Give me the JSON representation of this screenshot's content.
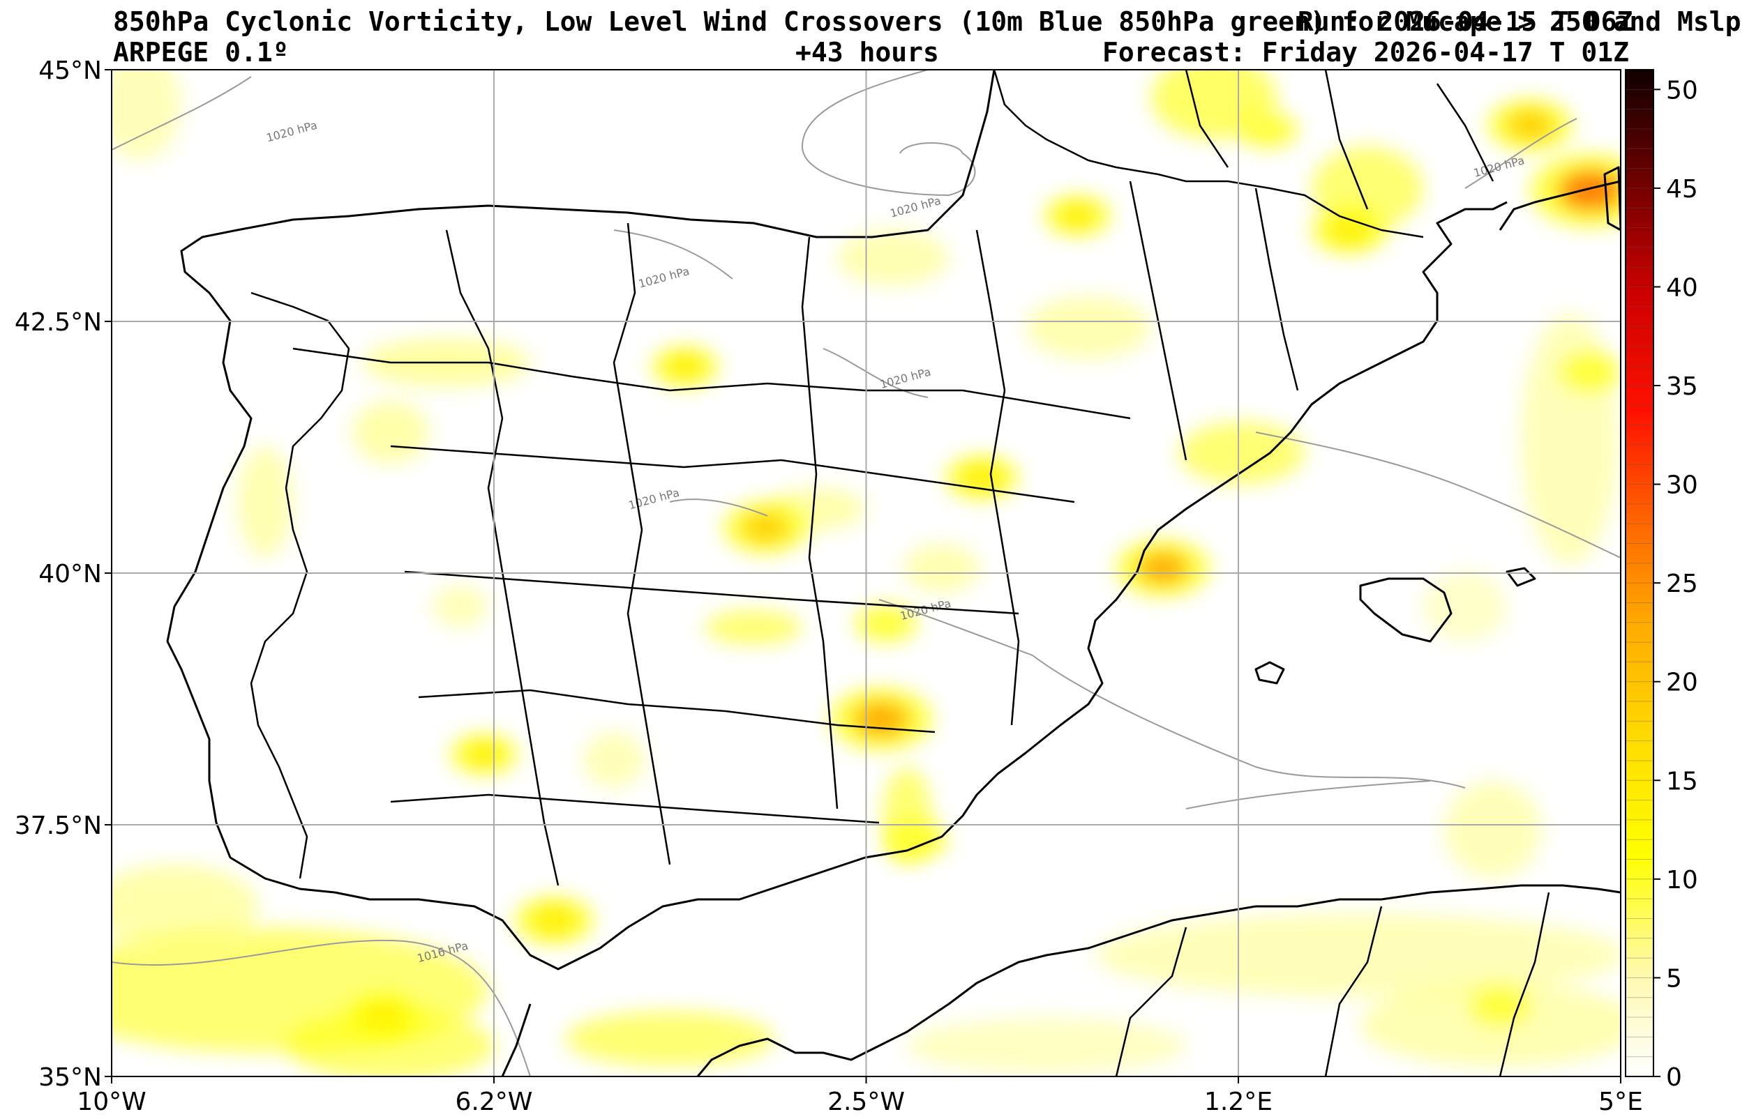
{
  "header": {
    "title": "850hPa Cyclonic Vorticity, Low Level Wind Crossovers (10m Blue 850hPa green) for Mucape > 250 and Mslp",
    "run": "Run: 2026-04-15 T 06Z",
    "model": "ARPEGE 0.1º",
    "lead": "+43 hours",
    "forecast": "Forecast: Friday 2026-04-17 T 01Z"
  },
  "map": {
    "lon_range": [
      -10,
      5
    ],
    "lat_range": [
      35,
      45
    ],
    "lon_ticks": [
      {
        "value": -10,
        "label": "10°W"
      },
      {
        "value": -6.2,
        "label": "6.2°W"
      },
      {
        "value": -2.5,
        "label": "2.5°W"
      },
      {
        "value": 1.2,
        "label": "1.2°E"
      },
      {
        "value": 5,
        "label": "5°E"
      }
    ],
    "lat_ticks": [
      {
        "value": 45,
        "label": "45°N"
      },
      {
        "value": 42.5,
        "label": "42.5°N"
      },
      {
        "value": 40,
        "label": "40°N"
      },
      {
        "value": 37.5,
        "label": "37.5°N"
      },
      {
        "value": 35,
        "label": "35°N"
      }
    ],
    "grid": true,
    "isobar_labels": [
      {
        "text": "1020 hPa",
        "lon": -8.2,
        "lat": 44.35
      },
      {
        "text": "1020 hPa",
        "lon": -2.0,
        "lat": 43.6
      },
      {
        "text": "1020 hPa",
        "lon": -4.5,
        "lat": 42.9
      },
      {
        "text": "1020 hPa",
        "lon": -2.1,
        "lat": 41.9
      },
      {
        "text": "1020 hPa",
        "lon": -4.6,
        "lat": 40.7
      },
      {
        "text": "1020 hPa",
        "lon": -1.9,
        "lat": 39.6
      },
      {
        "text": "1016 hPa",
        "lon": -6.7,
        "lat": 36.2
      },
      {
        "text": "1020 hPa",
        "lon": 3.8,
        "lat": 44.0
      }
    ]
  },
  "colorbar": {
    "min": 0,
    "max": 51,
    "ticks": [
      0,
      5,
      10,
      15,
      20,
      25,
      30,
      35,
      40,
      45,
      50
    ],
    "colors": [
      "#ffffff",
      "#fff9b0",
      "#ffff33",
      "#ffee00",
      "#ffcc00",
      "#ffaa00",
      "#ff7700",
      "#ff4400",
      "#ee0000",
      "#aa0000",
      "#550000",
      "#110000"
    ]
  },
  "chart_data": {
    "type": "heatmap",
    "title": "850hPa Cyclonic Vorticity, Low Level Wind Crossovers (10m Blue 850hPa green) for Mucape > 250 and Mslp",
    "xlabel": "",
    "ylabel": "",
    "xlim": [
      -10,
      5
    ],
    "ylim": [
      35,
      45
    ],
    "cells": [
      {
        "lon": -2.35,
        "lat": 38.55,
        "value": 24
      },
      {
        "lon": 0.45,
        "lat": 40.05,
        "value": 21
      },
      {
        "lon": -3.5,
        "lat": 40.45,
        "value": 18
      },
      {
        "lon": -1.35,
        "lat": 40.95,
        "value": 14
      },
      {
        "lon": 4.7,
        "lat": 43.8,
        "value": 30
      },
      {
        "lon": 4.1,
        "lat": 44.45,
        "value": 18
      },
      {
        "lon": 2.3,
        "lat": 43.4,
        "value": 15
      },
      {
        "lon": -0.4,
        "lat": 43.55,
        "value": 12
      },
      {
        "lon": -5.6,
        "lat": 36.55,
        "value": 16
      },
      {
        "lon": -7.3,
        "lat": 35.6,
        "value": 13
      },
      {
        "lon": -4.3,
        "lat": 42.05,
        "value": 12
      },
      {
        "lon": -6.3,
        "lat": 38.2,
        "value": 12
      },
      {
        "lon": -2.3,
        "lat": 39.5,
        "value": 10
      },
      {
        "lon": -2.0,
        "lat": 37.35,
        "value": 10
      },
      {
        "lon": 4.7,
        "lat": 42.0,
        "value": 9
      },
      {
        "lon": 3.8,
        "lat": 35.7,
        "value": 8
      },
      {
        "lon": 1.5,
        "lat": 44.4,
        "value": 9
      }
    ]
  }
}
